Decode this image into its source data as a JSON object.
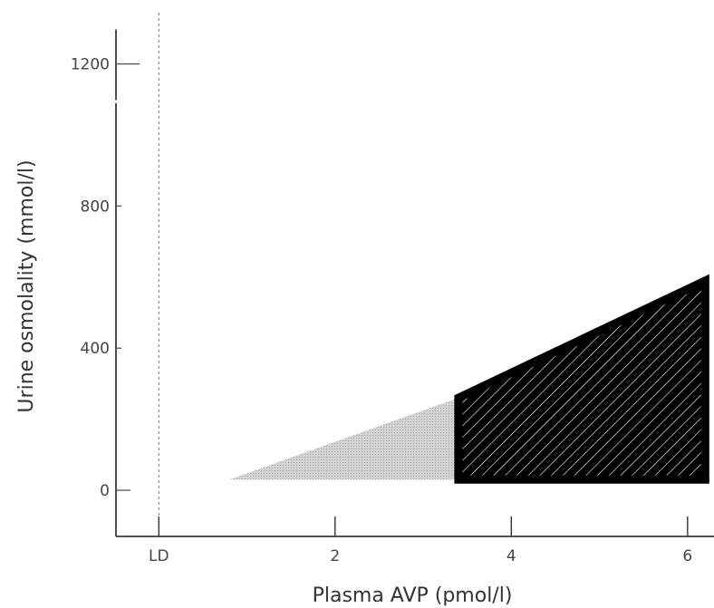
{
  "chart_data": {
    "type": "area",
    "xlabel": "Plasma AVP (pmol/l)",
    "ylabel": "Urine osmolality (mmol/l)",
    "x_tick_labels": [
      "LD",
      "2",
      "4",
      "6"
    ],
    "x_tick_values": [
      1,
      2,
      3,
      4
    ],
    "y_tick_labels": [
      "0",
      "400",
      "800",
      "1200"
    ],
    "y_tick_values": [
      0,
      400,
      800,
      1200
    ],
    "xlim": [
      0.5,
      4.15
    ],
    "ylim": [
      -130,
      1380
    ],
    "y_axis_break": [
      1090,
      1200
    ],
    "ld_line_x": 1,
    "regions": [
      {
        "fill": "light-gray-stippled",
        "color": "#bdbdbd",
        "polygon": [
          [
            1.4,
            30
          ],
          [
            2.7,
            260
          ],
          [
            2.7,
            30
          ]
        ]
      },
      {
        "fill": "black-hatched",
        "color": "#000000",
        "polygon": [
          [
            2.7,
            30
          ],
          [
            2.7,
            260
          ],
          [
            4.1,
            590
          ],
          [
            4.1,
            30
          ]
        ]
      }
    ]
  }
}
